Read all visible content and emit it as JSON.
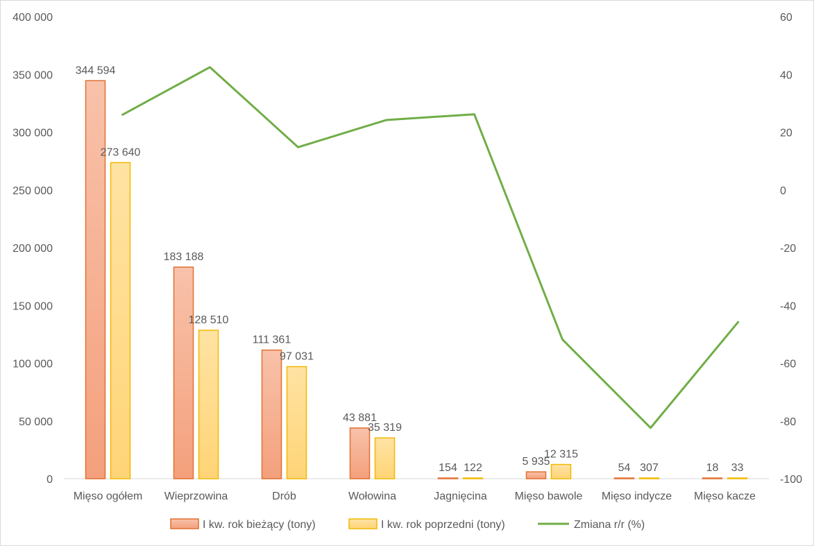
{
  "chart_data": {
    "type": "bar",
    "categories": [
      "Mięso ogółem",
      "Wieprzowina",
      "Drób",
      "Wołowina",
      "Jagnięcina",
      "Mięso bawole",
      "Mięso indycze",
      "Mięso kacze"
    ],
    "series": [
      {
        "name": "I kw. rok bieżący (tony)",
        "type": "bar",
        "axis": "left",
        "color": "#f4a582",
        "border_color": "#e07030",
        "values": [
          344594,
          183188,
          111361,
          43881,
          154,
          5935,
          54,
          18
        ],
        "labels": [
          "344 594",
          "183 188",
          "111 361",
          "43 881",
          "154",
          "5 935",
          "54",
          "18"
        ]
      },
      {
        "name": "I kw. rok poprzedni (tony)",
        "type": "bar",
        "axis": "left",
        "color": "#ffd98a",
        "border_color": "#f2b800",
        "values": [
          273640,
          128510,
          97031,
          35319,
          122,
          12315,
          307,
          33
        ],
        "labels": [
          "273 640",
          "128 510",
          "97 031",
          "35 319",
          "122",
          "12 315",
          "307",
          "33"
        ]
      },
      {
        "name": "Zmiana r/r (%)",
        "type": "line",
        "axis": "right",
        "color": "#70ad47",
        "values": [
          25.9,
          42.5,
          14.8,
          24.2,
          26.2,
          -51.8,
          -82.4,
          -45.5
        ]
      }
    ],
    "y_left": {
      "min": 0,
      "max": 400000,
      "ticks": [
        0,
        50000,
        100000,
        150000,
        200000,
        250000,
        300000,
        350000,
        400000
      ],
      "tick_labels": [
        "0",
        "50 000",
        "100 000",
        "150 000",
        "200 000",
        "250 000",
        "300 000",
        "350 000",
        "400 000"
      ]
    },
    "y_right": {
      "min": -100,
      "max": 60,
      "ticks": [
        -100,
        -80,
        -60,
        -40,
        -20,
        0,
        20,
        40,
        60
      ],
      "tick_labels": [
        "-100",
        "-80",
        "-60",
        "-40",
        "-20",
        "0",
        "20",
        "40",
        "60"
      ]
    },
    "grid": false,
    "legend_position": "bottom",
    "title": "",
    "xlabel": "",
    "ylabel": ""
  }
}
